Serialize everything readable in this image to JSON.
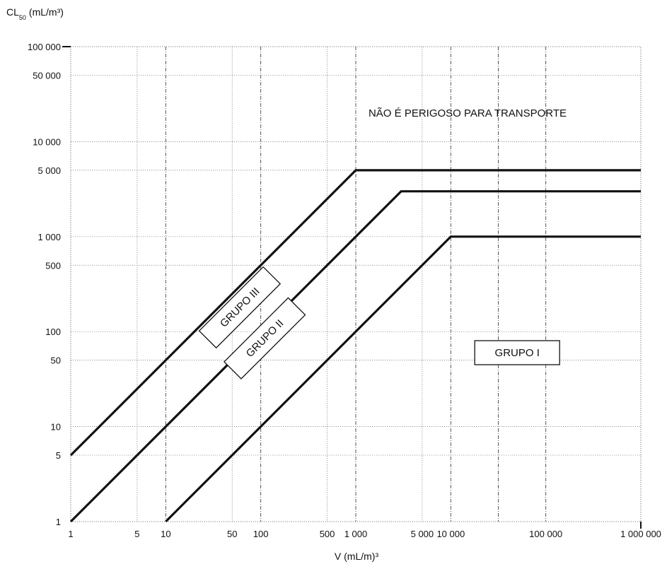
{
  "chart_data": {
    "type": "line",
    "x_scale": "log",
    "y_scale": "log",
    "xlim": [
      1,
      1000000
    ],
    "ylim": [
      1,
      100000
    ],
    "grid": true,
    "xlabel": "V (mL/m)³",
    "ylabel": {
      "main": "CL",
      "subscript": "50",
      "unit": "(mL/m³)"
    },
    "x_ticks": [
      {
        "value": 1,
        "label": "1"
      },
      {
        "value": 5,
        "label": "5"
      },
      {
        "value": 10,
        "label": "10"
      },
      {
        "value": 50,
        "label": "50"
      },
      {
        "value": 100,
        "label": "100"
      },
      {
        "value": 500,
        "label": "500"
      },
      {
        "value": 1000,
        "label": "1 000"
      },
      {
        "value": 5000,
        "label": "5 000"
      },
      {
        "value": 10000,
        "label": "10 000"
      },
      {
        "value": 100000,
        "label": "100 000"
      },
      {
        "value": 1000000,
        "label": "1 000 000"
      }
    ],
    "y_ticks": [
      {
        "value": 1,
        "label": "1"
      },
      {
        "value": 5,
        "label": "5"
      },
      {
        "value": 10,
        "label": "10"
      },
      {
        "value": 50,
        "label": "50"
      },
      {
        "value": 100,
        "label": "100"
      },
      {
        "value": 500,
        "label": "500"
      },
      {
        "value": 1000,
        "label": "1 000"
      },
      {
        "value": 5000,
        "label": "5 000"
      },
      {
        "value": 10000,
        "label": "10 000"
      },
      {
        "value": 50000,
        "label": "50 000"
      },
      {
        "value": 100000,
        "label": "100 000"
      }
    ],
    "series": [
      {
        "points": [
          [
            1,
            5
          ],
          [
            1000,
            5000
          ],
          [
            1000000,
            5000
          ]
        ]
      },
      {
        "points": [
          [
            1,
            1
          ],
          [
            3000,
            3000
          ],
          [
            1000000,
            3000
          ]
        ]
      },
      {
        "points": [
          [
            10,
            1
          ],
          [
            10000,
            1000
          ],
          [
            1000000,
            1000
          ]
        ]
      }
    ],
    "annotations": [
      {
        "text": "NÃO É PERIGOSO PARA TRANSPORTE",
        "x": 15000,
        "y": 20000,
        "boxed": false
      },
      {
        "text": "GRUPO III",
        "x": 60,
        "y": 180,
        "boxed": true,
        "rotate": -45
      },
      {
        "text": "GRUPO II",
        "x": 110,
        "y": 85,
        "boxed": true,
        "rotate": -45
      },
      {
        "text": "GRUPO I",
        "x": 50000,
        "y": 60,
        "boxed": true
      }
    ]
  }
}
